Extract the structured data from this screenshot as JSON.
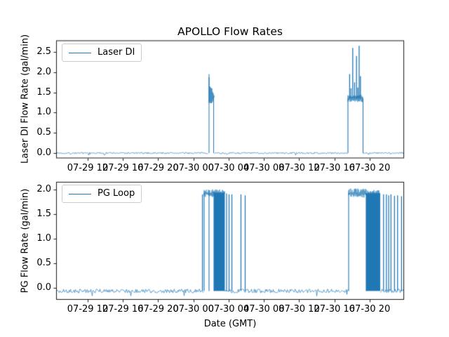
{
  "figure": {
    "background": "#ffffff"
  },
  "chart_data": [
    {
      "type": "line",
      "subplot": "top",
      "title": "APOLLO Flow Rates",
      "ylabel": "Laser DI Flow Rate (gal/min)",
      "legend": {
        "label": "Laser DI",
        "location": "upper left"
      },
      "line_color": "#1f77b4",
      "grid": false,
      "x_axis": {
        "unit": "hours since 07-29 00:00 (GMT)",
        "lim": [
          8.42,
          47.9
        ],
        "ticks": [
          12,
          16,
          20,
          24,
          28,
          32,
          36,
          40,
          44
        ],
        "tick_labels": [
          "07-29 12",
          "07-29 16",
          "07-29 20",
          "07-30 00",
          "07-30 04",
          "07-30 08",
          "07-30 12",
          "07-30 16",
          "07-30 20"
        ]
      },
      "y_axis": {
        "lim": [
          -0.13,
          2.785
        ],
        "ticks": [
          0.0,
          0.5,
          1.0,
          1.5,
          2.0,
          2.5
        ],
        "tick_labels": [
          "0.0",
          "0.5",
          "1.0",
          "1.5",
          "2.0",
          "2.5"
        ]
      },
      "series": {
        "name": "Laser DI",
        "baseline": {
          "value": 0.0,
          "noise": 0.02
        },
        "events": [
          {
            "kind": "burst",
            "t0": 25.73,
            "t1": 26.33,
            "lo": 1.25,
            "hi": 1.78,
            "peak": 1.95,
            "end": 1.38,
            "note": "short burst ~07-30 01:45 to 02:20, flow 1.25-1.95"
          },
          {
            "kind": "plateau_spikes",
            "t0": 41.53,
            "t1": 43.24,
            "level": 1.35,
            "noise": 0.06,
            "spikes": [
              [
                41.72,
                1.95
              ],
              [
                41.88,
                1.6
              ],
              [
                42.07,
                2.6
              ],
              [
                42.28,
                1.75
              ],
              [
                42.5,
                2.4
              ],
              [
                42.65,
                1.62
              ],
              [
                42.8,
                2.65
              ],
              [
                42.95,
                1.9
              ]
            ],
            "note": "run ~07-30 17:30 to 19:15, base 1.35 gal/min with spikes to 2.65"
          }
        ]
      }
    },
    {
      "type": "line",
      "subplot": "bottom",
      "xlabel": "Date (GMT)",
      "ylabel": "PG Flow Rate (gal/min)",
      "legend": {
        "label": "PG Loop",
        "location": "upper left"
      },
      "line_color": "#1f77b4",
      "grid": false,
      "x_axis": {
        "unit": "hours since 07-29 00:00 (GMT)",
        "lim": [
          8.42,
          47.9
        ],
        "ticks": [
          12,
          16,
          20,
          24,
          28,
          32,
          36,
          40,
          44
        ],
        "tick_labels": [
          "07-29 12",
          "07-29 16",
          "07-29 20",
          "07-30 00",
          "07-30 04",
          "07-30 08",
          "07-30 12",
          "07-30 16",
          "07-30 20"
        ]
      },
      "y_axis": {
        "lim": [
          -0.25,
          2.155
        ],
        "ticks": [
          0.0,
          0.5,
          1.0,
          1.5,
          2.0
        ],
        "tick_labels": [
          "0.0",
          "0.5",
          "1.0",
          "1.5",
          "2.0"
        ]
      },
      "series": {
        "name": "PG Loop",
        "baseline": {
          "value": -0.07,
          "noise": 0.04
        },
        "events": [
          {
            "kind": "pulse",
            "t": 25.02,
            "v": 1.9
          },
          {
            "kind": "plateau",
            "t0": 25.21,
            "t1": 26.33,
            "level": 1.93,
            "noise": 0.08,
            "gaps": [
              25.77
            ]
          },
          {
            "kind": "block",
            "t0": 26.33,
            "t1": 27.56,
            "level": 1.93,
            "noise": 0.07
          },
          {
            "kind": "pulse",
            "t": 27.76,
            "v": 1.92
          },
          {
            "kind": "pulse",
            "t": 28.04,
            "v": 1.9
          },
          {
            "kind": "pulse",
            "t": 28.36,
            "v": 1.9
          },
          {
            "kind": "pulse",
            "t": 29.39,
            "v": 1.9
          },
          {
            "kind": "pulse",
            "t": 29.87,
            "v": 1.88
          },
          {
            "kind": "dip",
            "t": 41.41,
            "v": -0.14
          },
          {
            "kind": "plateau",
            "t0": 41.61,
            "t1": 43.6,
            "level": 1.93,
            "noise": 0.09,
            "gaps": []
          },
          {
            "kind": "block",
            "t0": 43.6,
            "t1": 45.19,
            "level": 1.92,
            "noise": 0.08
          },
          {
            "kind": "pulse",
            "t": 45.57,
            "v": 1.9
          },
          {
            "kind": "pulse",
            "t": 45.89,
            "v": 1.9
          },
          {
            "kind": "pulse",
            "t": 46.15,
            "v": 1.88
          },
          {
            "kind": "pulse",
            "t": 46.41,
            "v": 1.9
          },
          {
            "kind": "pulse",
            "t": 46.81,
            "v": 1.87
          },
          {
            "kind": "pulse",
            "t": 47.16,
            "v": 1.88
          },
          {
            "kind": "pulse",
            "t": 47.61,
            "v": 1.86
          }
        ]
      }
    }
  ]
}
